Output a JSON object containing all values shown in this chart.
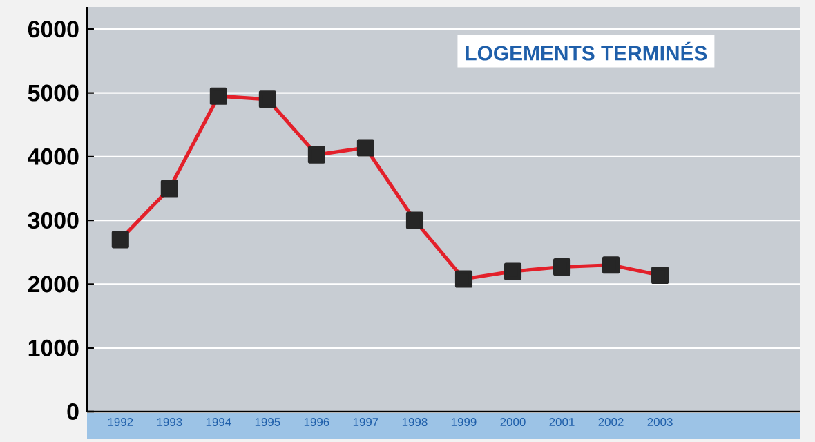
{
  "chart_data": {
    "type": "line",
    "title": "LOGEMENTS TERMINÉS",
    "categories": [
      "1992",
      "1993",
      "1994",
      "1995",
      "1996",
      "1997",
      "1998",
      "1999",
      "2000",
      "2001",
      "2002",
      "2003",
      null,
      null
    ],
    "series": [
      {
        "color": "#e3202a",
        "values": [
          2700,
          3500,
          4950,
          4900,
          4030,
          4140,
          3000,
          2080,
          2200,
          2270,
          2300,
          2140,
          null,
          null
        ]
      }
    ],
    "ylim": [
      0,
      6350
    ],
    "yticks": [
      0,
      1000,
      2000,
      3000,
      4000,
      5000,
      6000
    ],
    "grid": "y",
    "marker": "square",
    "line_style": "solid"
  }
}
